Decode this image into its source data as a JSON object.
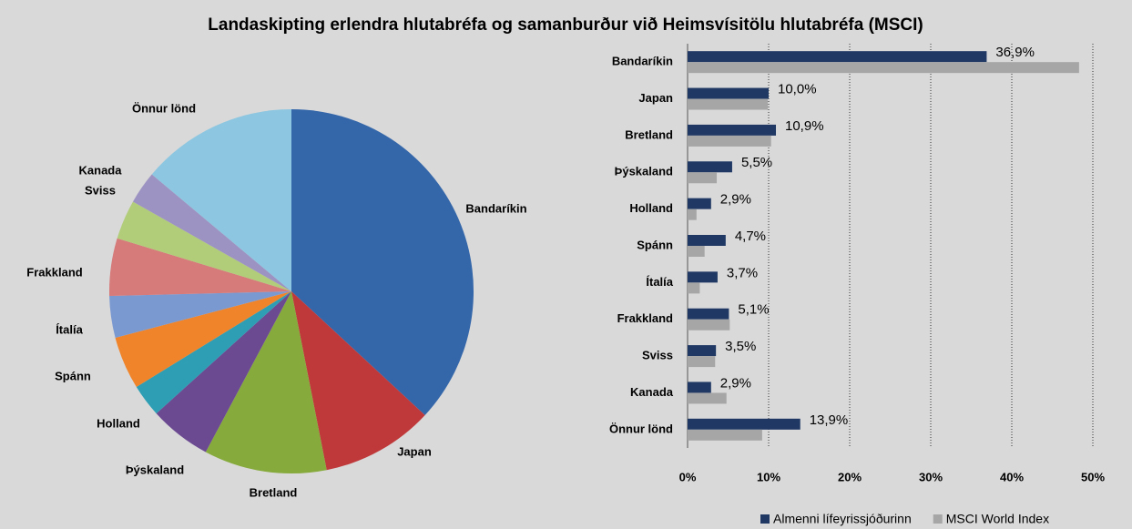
{
  "title": "Landaskipting erlendra hlutabréfa og samanburður við Heimsvísitölu hlutabréfa (MSCI)",
  "chart_data": [
    {
      "type": "pie",
      "categories": [
        "Bandaríkin",
        "Japan",
        "Bretland",
        "Þýskaland",
        "Holland",
        "Spánn",
        "Ítalía",
        "Frakkland",
        "Sviss",
        "Kanada",
        "Önnur lönd"
      ],
      "values": [
        36.9,
        10.0,
        10.9,
        5.5,
        2.9,
        4.7,
        3.7,
        5.1,
        3.5,
        2.9,
        13.9
      ],
      "colors": [
        "#3466aa",
        "#c0393a",
        "#87aa3c",
        "#6b4a92",
        "#2d9eb4",
        "#f0842a",
        "#7b99d1",
        "#d67a7a",
        "#b1cd7a",
        "#9d93c2",
        "#8dc6e0"
      ]
    },
    {
      "type": "bar",
      "orientation": "horizontal",
      "categories": [
        "Bandaríkin",
        "Japan",
        "Bretland",
        "Þýskaland",
        "Holland",
        "Spánn",
        "Ítalía",
        "Frakkland",
        "Sviss",
        "Kanada",
        "Önnur lönd"
      ],
      "series": [
        {
          "name": "Almenni lífeyrissjóðurinn",
          "color": "#1f3864",
          "values": [
            36.9,
            10.0,
            10.9,
            5.5,
            2.9,
            4.7,
            3.7,
            5.1,
            3.5,
            2.9,
            13.9
          ],
          "value_labels": [
            "36,9%",
            "10,0%",
            "10,9%",
            "5,5%",
            "2,9%",
            "4,7%",
            "3,7%",
            "5,1%",
            "3,5%",
            "2,9%",
            "13,9%"
          ]
        },
        {
          "name": "MSCI World Index",
          "color": "#a6a6a6",
          "values": [
            48.3,
            9.9,
            10.3,
            3.6,
            1.1,
            2.1,
            1.5,
            5.2,
            3.4,
            4.8,
            9.2
          ]
        }
      ],
      "xlim": [
        0,
        50
      ],
      "xticks": [
        {
          "value": 0,
          "label": "0%"
        },
        {
          "value": 10,
          "label": "10%"
        },
        {
          "value": 20,
          "label": "20%"
        },
        {
          "value": 30,
          "label": "30%"
        },
        {
          "value": 40,
          "label": "40%"
        },
        {
          "value": 50,
          "label": "50%"
        }
      ],
      "grid": true,
      "legend": "bottom"
    }
  ]
}
